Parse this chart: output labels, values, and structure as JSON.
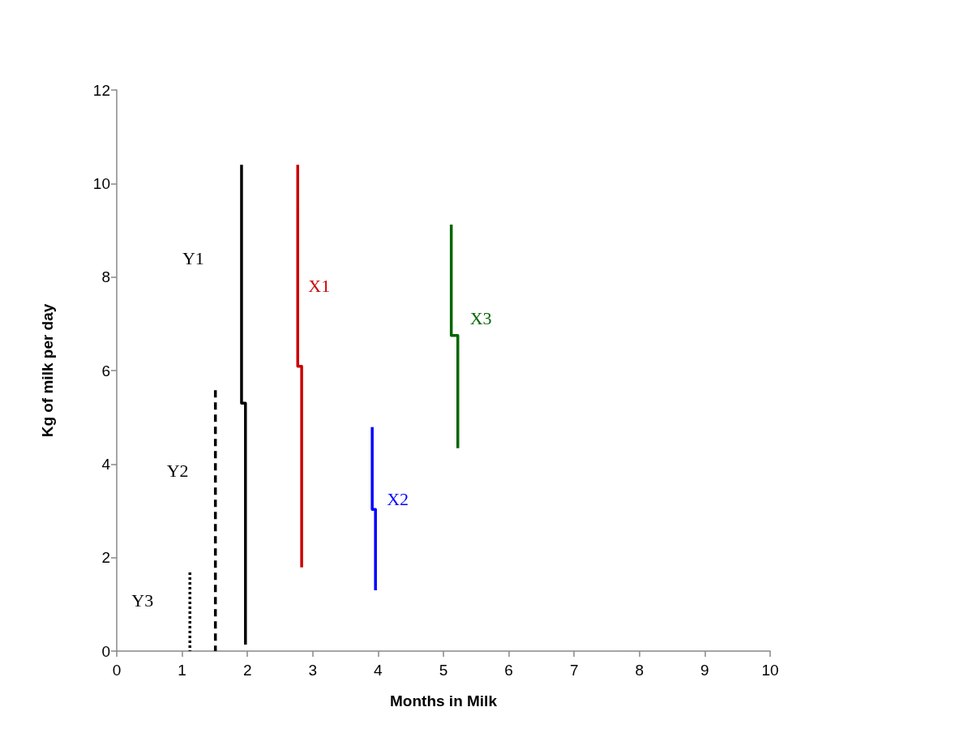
{
  "chart_data": {
    "type": "line",
    "xlabel": "Months in Milk",
    "ylabel": "Kg of milk per day",
    "xlim": [
      0,
      10
    ],
    "xticks": [
      0,
      1,
      2,
      3,
      4,
      5,
      6,
      7,
      8,
      9,
      10
    ],
    "ylim": [
      0,
      12
    ],
    "yticks": [
      0,
      2,
      4,
      6,
      8,
      10,
      12
    ],
    "grid": false,
    "marker": "none",
    "series": [
      {
        "name": "Y1",
        "color": "#000000",
        "line_style": "solid",
        "x": [
          1.91,
          1.91,
          1.97,
          1.97
        ],
        "values": [
          10.4,
          5.3,
          5.3,
          0.14
        ]
      },
      {
        "name": "Y2",
        "color": "#000000",
        "line_style": "dashed",
        "x": [
          1.51,
          1.51
        ],
        "values": [
          5.58,
          0
        ]
      },
      {
        "name": "Y3",
        "color": "#000000",
        "line_style": "dotted",
        "x": [
          1.12,
          1.12
        ],
        "values": [
          1.68,
          0
        ]
      },
      {
        "name": "X1",
        "color": "#cc0000",
        "line_style": "solid",
        "x": [
          2.77,
          2.77,
          2.83,
          2.83
        ],
        "values": [
          10.4,
          6.09,
          6.09,
          1.79
        ]
      },
      {
        "name": "X2",
        "color": "#0000ff",
        "line_style": "solid",
        "x": [
          3.91,
          3.91,
          3.96,
          3.96
        ],
        "values": [
          4.79,
          3.03,
          3.03,
          1.3
        ]
      },
      {
        "name": "X3",
        "color": "#006600",
        "line_style": "solid",
        "x": [
          5.12,
          5.12,
          5.22,
          5.22
        ],
        "values": [
          9.12,
          6.75,
          6.75,
          4.34
        ]
      }
    ]
  }
}
